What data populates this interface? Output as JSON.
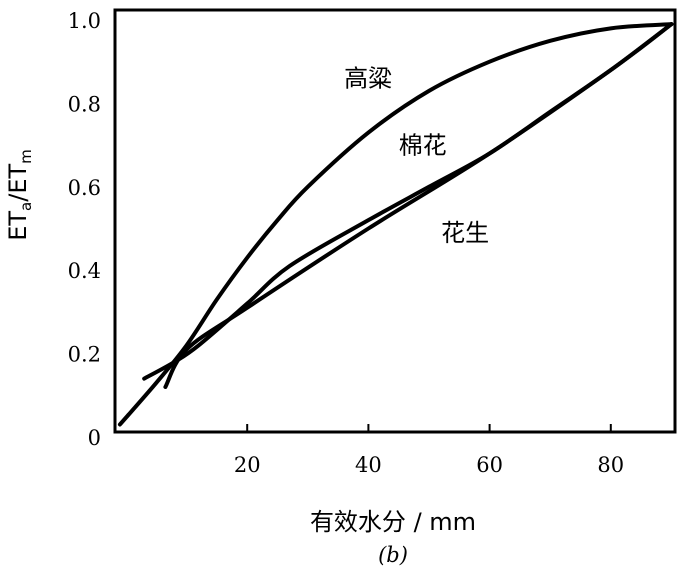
{
  "chart_data": {
    "type": "line",
    "title": "",
    "panel_label": "(b)",
    "xlabel": "有效水分 / mm",
    "ylabel": {
      "main1": "ET",
      "sub1": "a",
      "sep": "/",
      "main2": "ET",
      "sub2": "m"
    },
    "xlim": [
      -2,
      90
    ],
    "ylim": [
      0,
      1.02
    ],
    "xticks": [
      20,
      40,
      60,
      80
    ],
    "xtick_labels": [
      "20",
      "40",
      "60",
      "80"
    ],
    "yticks": [
      0,
      0.2,
      0.4,
      0.6,
      0.8,
      1.0
    ],
    "ytick_labels": [
      "0",
      "0.2",
      "0.4",
      "0.6",
      "0.8",
      "1.0"
    ],
    "grid": false,
    "series": [
      {
        "name": "高粱",
        "x": [
          -1,
          5,
          10,
          15,
          20,
          25,
          30,
          40,
          50,
          60,
          70,
          80,
          90
        ],
        "y": [
          0.03,
          0.13,
          0.22,
          0.33,
          0.43,
          0.52,
          0.6,
          0.73,
          0.83,
          0.9,
          0.95,
          0.98,
          0.99
        ]
      },
      {
        "name": "棉花",
        "x": [
          3,
          8,
          12,
          20,
          27,
          40,
          50,
          60,
          70,
          80,
          90
        ],
        "y": [
          0.14,
          0.18,
          0.22,
          0.32,
          0.41,
          0.52,
          0.6,
          0.68,
          0.78,
          0.88,
          0.99
        ]
      },
      {
        "name": "花生",
        "x": [
          6.5,
          10,
          20,
          40,
          60,
          80,
          90
        ],
        "y": [
          0.12,
          0.21,
          0.31,
          0.5,
          0.68,
          0.88,
          0.99
        ]
      }
    ],
    "annotations": [
      {
        "text": "高粱",
        "series": "高粱",
        "at": [
          36,
          0.84
        ]
      },
      {
        "text": "棉花",
        "series": "棉花",
        "at": [
          45,
          0.68
        ]
      },
      {
        "text": "花生",
        "series": "花生",
        "at": [
          52,
          0.47
        ]
      }
    ]
  }
}
